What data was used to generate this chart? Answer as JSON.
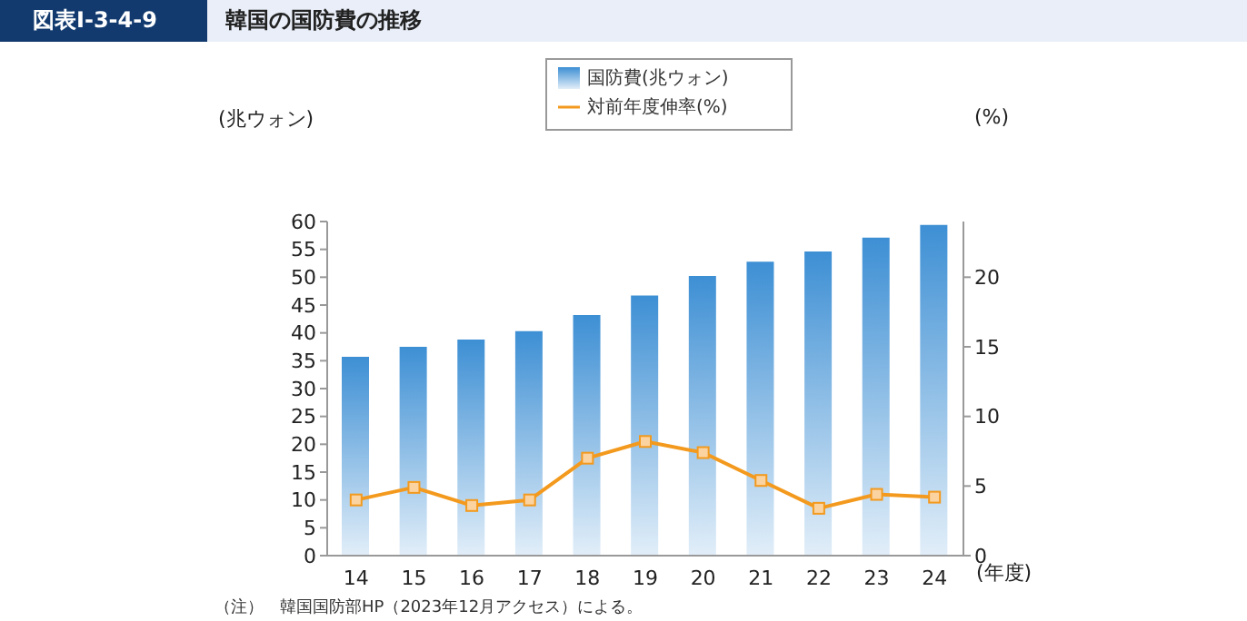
{
  "chart_data": {
    "type": "bar",
    "title": "韓国の国防費の推移",
    "xlabel": "(年度)",
    "ylabel": "(兆ウォン)",
    "y2label": "(%)",
    "annotations": [
      "図表Ⅰ-3-4-9",
      "（注）　韓国国防部HP（2023年12月アクセス）による。"
    ],
    "categories": [
      "14",
      "15",
      "16",
      "17",
      "18",
      "19",
      "20",
      "21",
      "22",
      "23",
      "24"
    ],
    "series": [
      {
        "name": "国防費(兆ウォン)",
        "color": "#3d8fd4",
        "values": [
          35.7,
          37.5,
          38.8,
          40.3,
          43.2,
          46.7,
          50.2,
          52.8,
          54.6,
          57.1,
          59.4
        ]
      },
      {
        "name": "対前年度伸率(%)",
        "type": "line",
        "axis": "y2",
        "color": "#f39a1e",
        "values": [
          4.0,
          4.9,
          3.6,
          4.0,
          7.0,
          8.2,
          7.4,
          5.4,
          3.4,
          4.4,
          4.2
        ]
      }
    ],
    "ylim": [
      0,
      60
    ],
    "yticks": [
      0,
      5,
      10,
      15,
      20,
      25,
      30,
      35,
      40,
      45,
      50,
      55,
      60
    ],
    "y2lim": [
      0,
      24
    ],
    "y2ticks": [
      0,
      5,
      10,
      15,
      20
    ],
    "marker": "square",
    "legend": "top",
    "grid": false
  }
}
